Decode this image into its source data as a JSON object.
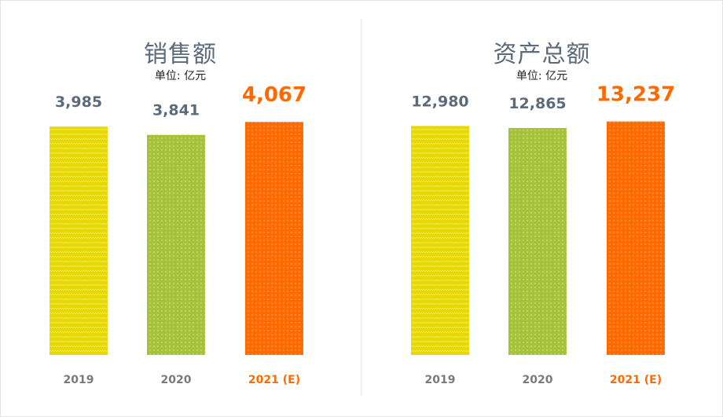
{
  "colors": {
    "yellow": "#e6d800",
    "green": "#a6c23a",
    "orange": "#ff6a00",
    "normal_label": "#5b6b7b",
    "highlight_label": "#ff6a00",
    "axis_label": "#7a7a7a"
  },
  "chart_data": [
    {
      "type": "bar",
      "title": "销售额",
      "subtitle": "单位: 亿元",
      "categories": [
        "2019",
        "2020",
        "2021 (E)"
      ],
      "values": [
        3985,
        3841,
        4067
      ],
      "value_labels": [
        "3,985",
        "3,841",
        "4,067"
      ],
      "highlight_index": 2,
      "bar_colors": [
        "yellow",
        "green",
        "orange"
      ],
      "ylim": [
        0,
        4550
      ]
    },
    {
      "type": "bar",
      "title": "资产总额",
      "subtitle": "单位: 亿元",
      "categories": [
        "2019",
        "2020",
        "2021 (E)"
      ],
      "values": [
        12980,
        12865,
        13237
      ],
      "value_labels": [
        "12,980",
        "12,865",
        "13,237"
      ],
      "highlight_index": 2,
      "bar_colors": [
        "yellow",
        "green",
        "orange"
      ],
      "ylim": [
        0,
        14780
      ]
    }
  ]
}
